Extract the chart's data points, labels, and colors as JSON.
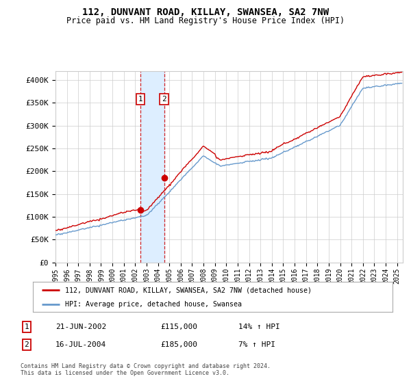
{
  "title": "112, DUNVANT ROAD, KILLAY, SWANSEA, SA2 7NW",
  "subtitle": "Price paid vs. HM Land Registry's House Price Index (HPI)",
  "legend_line1": "112, DUNVANT ROAD, KILLAY, SWANSEA, SA2 7NW (detached house)",
  "legend_line2": "HPI: Average price, detached house, Swansea",
  "footer": "Contains HM Land Registry data © Crown copyright and database right 2024.\nThis data is licensed under the Open Government Licence v3.0.",
  "sale1_date": "21-JUN-2002",
  "sale1_price": "£115,000",
  "sale1_hpi": "14% ↑ HPI",
  "sale2_date": "16-JUL-2004",
  "sale2_price": "£185,000",
  "sale2_hpi": "7% ↑ HPI",
  "hpi_color": "#6699cc",
  "price_color": "#cc0000",
  "highlight_color": "#ddeeff",
  "sale1_x": 2002.47,
  "sale2_x": 2004.54,
  "sale1_y": 115000,
  "sale2_y": 185000,
  "ylim": [
    0,
    420000
  ],
  "xlim": [
    1995.0,
    2025.5
  ],
  "yticks": [
    0,
    50000,
    100000,
    150000,
    200000,
    250000,
    300000,
    350000,
    400000
  ],
  "ytick_labels": [
    "£0",
    "£50K",
    "£100K",
    "£150K",
    "£200K",
    "£250K",
    "£300K",
    "£350K",
    "£400K"
  ],
  "xticks": [
    1995,
    1996,
    1997,
    1998,
    1999,
    2000,
    2001,
    2002,
    2003,
    2004,
    2005,
    2006,
    2007,
    2008,
    2009,
    2010,
    2011,
    2012,
    2013,
    2014,
    2015,
    2016,
    2017,
    2018,
    2019,
    2020,
    2021,
    2022,
    2023,
    2024,
    2025
  ],
  "grid_color": "#cccccc",
  "bg_color": "#ffffff"
}
